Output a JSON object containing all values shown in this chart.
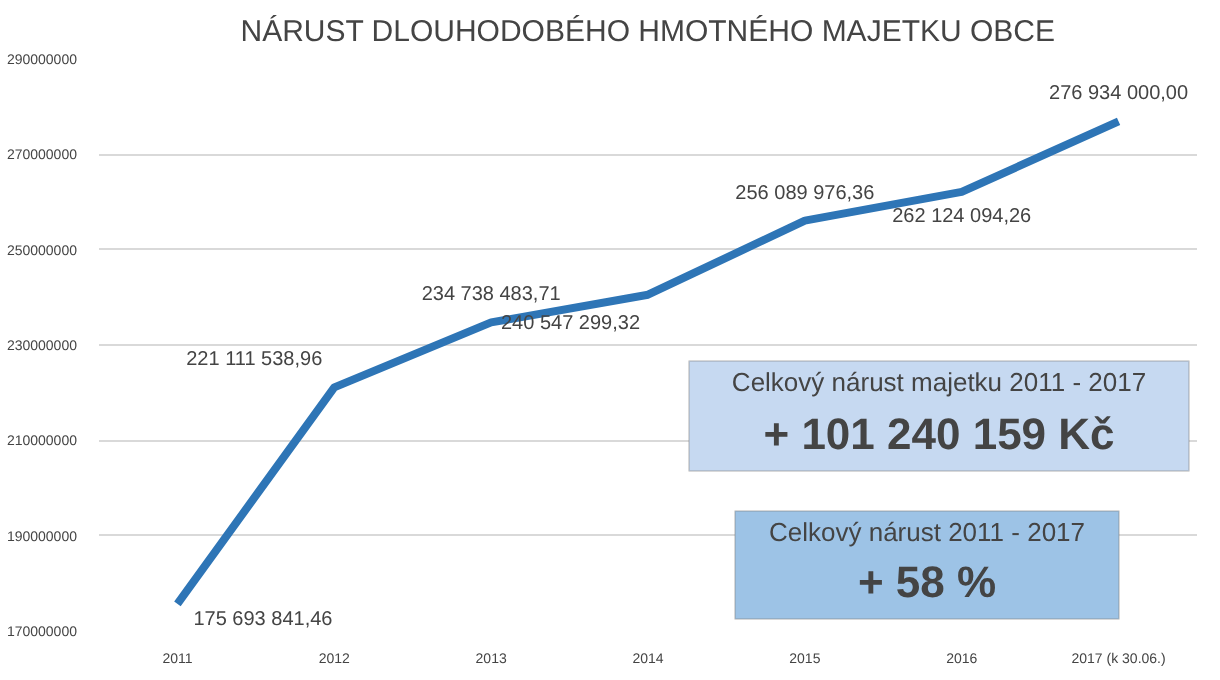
{
  "chart_data": {
    "type": "line",
    "title": "NÁRUST DLOUHODOBÉHO HMOTNÉHO MAJETKU OBCE",
    "categories": [
      "2011",
      "2012",
      "2013",
      "2014",
      "2015",
      "2016",
      "2017 (k 30.06.)"
    ],
    "series": [
      {
        "color": "#2e75b6",
        "values": [
          175693841.46,
          221111538.96,
          234738483.71,
          240547299.32,
          256089976.36,
          262124094.26,
          276934000.0
        ],
        "value_labels": [
          "175 693 841,46",
          "221 111 538,96",
          "234 738 483,71",
          "240 547 299,32",
          "256 089 976,36",
          "262 124 094,26",
          "276 934 000,00"
        ]
      }
    ],
    "ylim": [
      170000000,
      290000000
    ],
    "yticks": [
      170000000,
      190000000,
      210000000,
      230000000,
      250000000,
      270000000,
      290000000
    ],
    "grid": "y",
    "marker": "none",
    "line_style": "solid",
    "annotations": [
      "Celkový nárust majetku 2011 - 2017",
      "+ 101 240 159 Kč",
      "Celkový nárust 2011 - 2017",
      "+ 58 %"
    ]
  }
}
